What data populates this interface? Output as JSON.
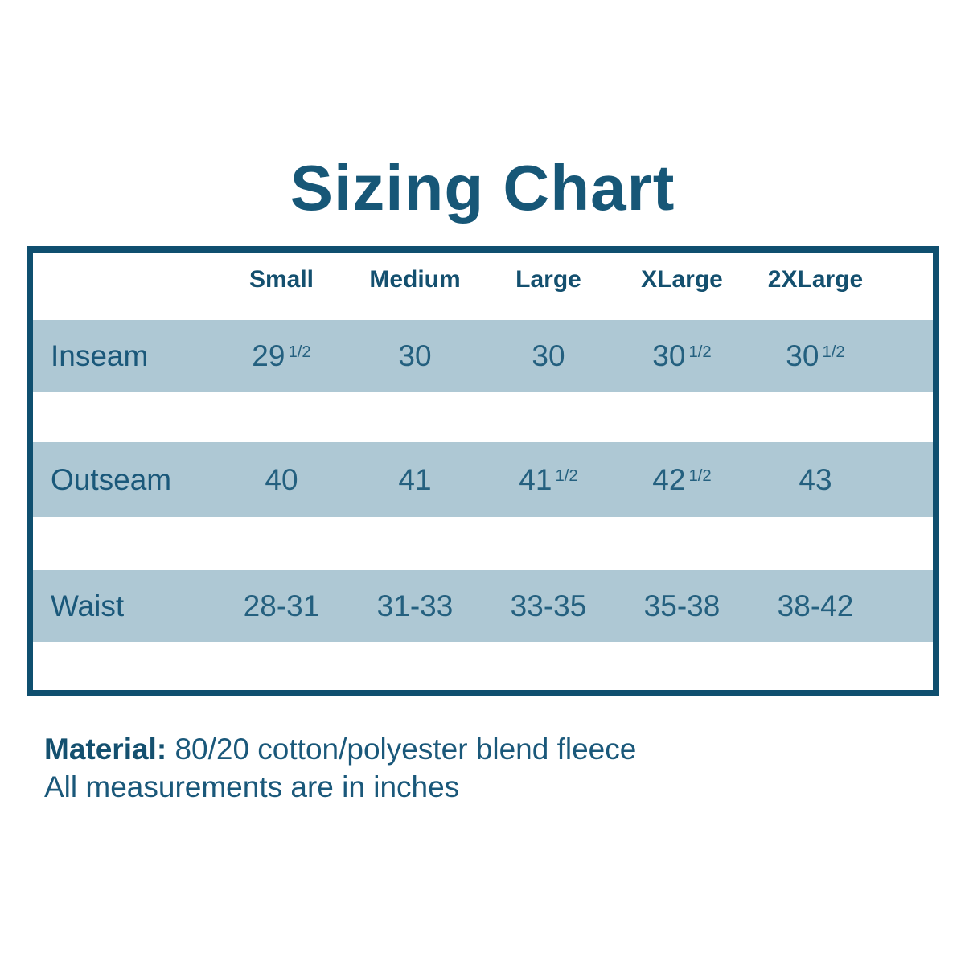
{
  "title": "Sizing Chart",
  "colors": {
    "ink": "#1a587a",
    "border": "#0f4f6f",
    "stripe": "#aec8d4",
    "background": "#ffffff"
  },
  "table": {
    "columns": [
      "Small",
      "Medium",
      "Large",
      "XLarge",
      "2XLarge"
    ],
    "rows": [
      {
        "label": "Inseam",
        "values": [
          "29 1/2",
          "30",
          "30",
          "30 1/2",
          "30 1/2"
        ]
      },
      {
        "label": "Outseam",
        "values": [
          "40",
          "41",
          "41 1/2",
          "42 1/2",
          "43"
        ]
      },
      {
        "label": "Waist",
        "values": [
          "28-31",
          "31-33",
          "33-35",
          "35-38",
          "38-42"
        ]
      }
    ]
  },
  "footer": {
    "material_label": "Material:",
    "material_value": "80/20 cotton/polyester blend fleece",
    "note": "All measurements are in inches"
  }
}
